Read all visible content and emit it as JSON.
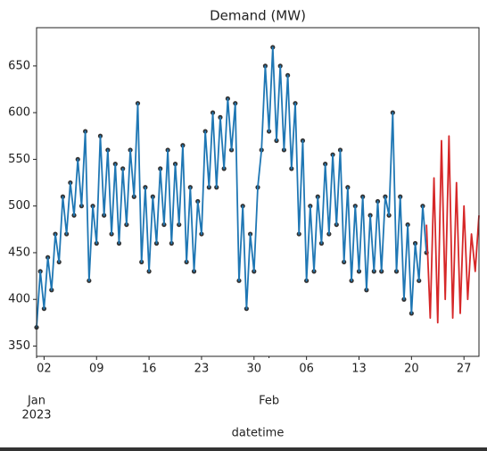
{
  "chart_data": {
    "type": "line",
    "title": "Demand (MW)",
    "xlabel": "datetime",
    "xlim": [
      "2023-01-01",
      "2023-03-01"
    ],
    "ylim": [
      339,
      691
    ],
    "yticks": [
      350,
      400,
      450,
      500,
      550,
      600,
      650
    ],
    "xticks": [
      {
        "value": "2023-01-02",
        "label": "02"
      },
      {
        "value": "2023-01-09",
        "label": "09"
      },
      {
        "value": "2023-01-16",
        "label": "16"
      },
      {
        "value": "2023-01-23",
        "label": "23"
      },
      {
        "value": "2023-01-30",
        "label": "30"
      },
      {
        "value": "2023-02-06",
        "label": "06"
      },
      {
        "value": "2023-02-13",
        "label": "13"
      },
      {
        "value": "2023-02-20",
        "label": "20"
      },
      {
        "value": "2023-02-27",
        "label": "27"
      }
    ],
    "month_ticks": [
      {
        "value": "2023-01-01",
        "label": "Jan",
        "year": "2023"
      },
      {
        "value": "2023-02-01",
        "label": "Feb"
      }
    ],
    "series": [
      {
        "color": "#1f77b4",
        "marker_color": "#333333",
        "x": [
          "2023-01-01 00:00",
          "2023-01-01 12:00",
          "2023-01-02 00:00",
          "2023-01-02 12:00",
          "2023-01-03 00:00",
          "2023-01-03 12:00",
          "2023-01-04 00:00",
          "2023-01-04 12:00",
          "2023-01-05 00:00",
          "2023-01-05 12:00",
          "2023-01-06 00:00",
          "2023-01-06 12:00",
          "2023-01-07 00:00",
          "2023-01-07 12:00",
          "2023-01-08 00:00",
          "2023-01-08 12:00",
          "2023-01-09 00:00",
          "2023-01-09 12:00",
          "2023-01-10 00:00",
          "2023-01-10 12:00",
          "2023-01-11 00:00",
          "2023-01-11 12:00",
          "2023-01-12 00:00",
          "2023-01-12 12:00",
          "2023-01-13 00:00",
          "2023-01-13 12:00",
          "2023-01-14 00:00",
          "2023-01-14 12:00",
          "2023-01-15 00:00",
          "2023-01-15 12:00",
          "2023-01-16 00:00",
          "2023-01-16 12:00",
          "2023-01-17 00:00",
          "2023-01-17 12:00",
          "2023-01-18 00:00",
          "2023-01-18 12:00",
          "2023-01-19 00:00",
          "2023-01-19 12:00",
          "2023-01-20 00:00",
          "2023-01-20 12:00",
          "2023-01-21 00:00",
          "2023-01-21 12:00",
          "2023-01-22 00:00",
          "2023-01-22 12:00",
          "2023-01-23 00:00",
          "2023-01-23 12:00",
          "2023-01-24 00:00",
          "2023-01-24 12:00",
          "2023-01-25 00:00",
          "2023-01-25 12:00",
          "2023-01-26 00:00",
          "2023-01-26 12:00",
          "2023-01-27 00:00",
          "2023-01-27 12:00",
          "2023-01-28 00:00",
          "2023-01-28 12:00",
          "2023-01-29 00:00",
          "2023-01-29 12:00",
          "2023-01-30 00:00",
          "2023-01-30 12:00",
          "2023-01-31 00:00",
          "2023-01-31 12:00",
          "2023-02-01 00:00",
          "2023-02-01 12:00",
          "2023-02-02 00:00",
          "2023-02-02 12:00",
          "2023-02-03 00:00",
          "2023-02-03 12:00",
          "2023-02-04 00:00",
          "2023-02-04 12:00",
          "2023-02-05 00:00",
          "2023-02-05 12:00",
          "2023-02-06 00:00",
          "2023-02-06 12:00",
          "2023-02-07 00:00",
          "2023-02-07 12:00",
          "2023-02-08 00:00",
          "2023-02-08 12:00",
          "2023-02-09 00:00",
          "2023-02-09 12:00",
          "2023-02-10 00:00",
          "2023-02-10 12:00",
          "2023-02-11 00:00",
          "2023-02-11 12:00",
          "2023-02-12 00:00",
          "2023-02-12 12:00",
          "2023-02-13 00:00",
          "2023-02-13 12:00",
          "2023-02-14 00:00",
          "2023-02-14 12:00",
          "2023-02-15 00:00",
          "2023-02-15 12:00",
          "2023-02-16 00:00",
          "2023-02-16 12:00",
          "2023-02-17 00:00",
          "2023-02-17 12:00",
          "2023-02-18 00:00",
          "2023-02-18 12:00",
          "2023-02-19 00:00",
          "2023-02-19 12:00",
          "2023-02-20 00:00",
          "2023-02-20 12:00",
          "2023-02-21 00:00",
          "2023-02-21 12:00",
          "2023-02-22 00:00"
        ],
        "values": [
          370,
          430,
          390,
          445,
          410,
          470,
          440,
          510,
          470,
          525,
          490,
          550,
          500,
          580,
          420,
          500,
          460,
          575,
          490,
          560,
          470,
          545,
          460,
          540,
          480,
          560,
          510,
          610,
          440,
          520,
          430,
          510,
          460,
          540,
          480,
          560,
          460,
          545,
          480,
          565,
          440,
          520,
          430,
          505,
          470,
          580,
          520,
          600,
          520,
          595,
          540,
          615,
          560,
          610,
          420,
          500,
          390,
          470,
          430,
          520,
          560,
          650,
          580,
          670,
          570,
          650,
          560,
          640,
          540,
          610,
          470,
          570,
          420,
          500,
          430,
          510,
          460,
          545,
          470,
          555,
          480,
          560,
          440,
          520,
          420,
          500,
          430,
          510,
          410,
          490,
          430,
          505,
          430,
          510,
          490,
          600,
          430,
          510,
          400,
          480,
          385,
          460,
          420,
          500,
          450
        ]
      },
      {
        "color": "#d62728",
        "x": [
          "2023-02-22 00:00",
          "2023-02-22 12:00",
          "2023-02-23 00:00",
          "2023-02-23 12:00",
          "2023-02-24 00:00",
          "2023-02-24 12:00",
          "2023-02-25 00:00",
          "2023-02-25 12:00",
          "2023-02-26 00:00",
          "2023-02-26 12:00",
          "2023-02-27 00:00",
          "2023-02-27 12:00",
          "2023-02-28 00:00",
          "2023-02-28 12:00",
          "2023-03-01 00:00"
        ],
        "values": [
          480,
          380,
          530,
          375,
          570,
          400,
          575,
          380,
          525,
          385,
          500,
          400,
          470,
          430,
          490
        ]
      }
    ]
  }
}
